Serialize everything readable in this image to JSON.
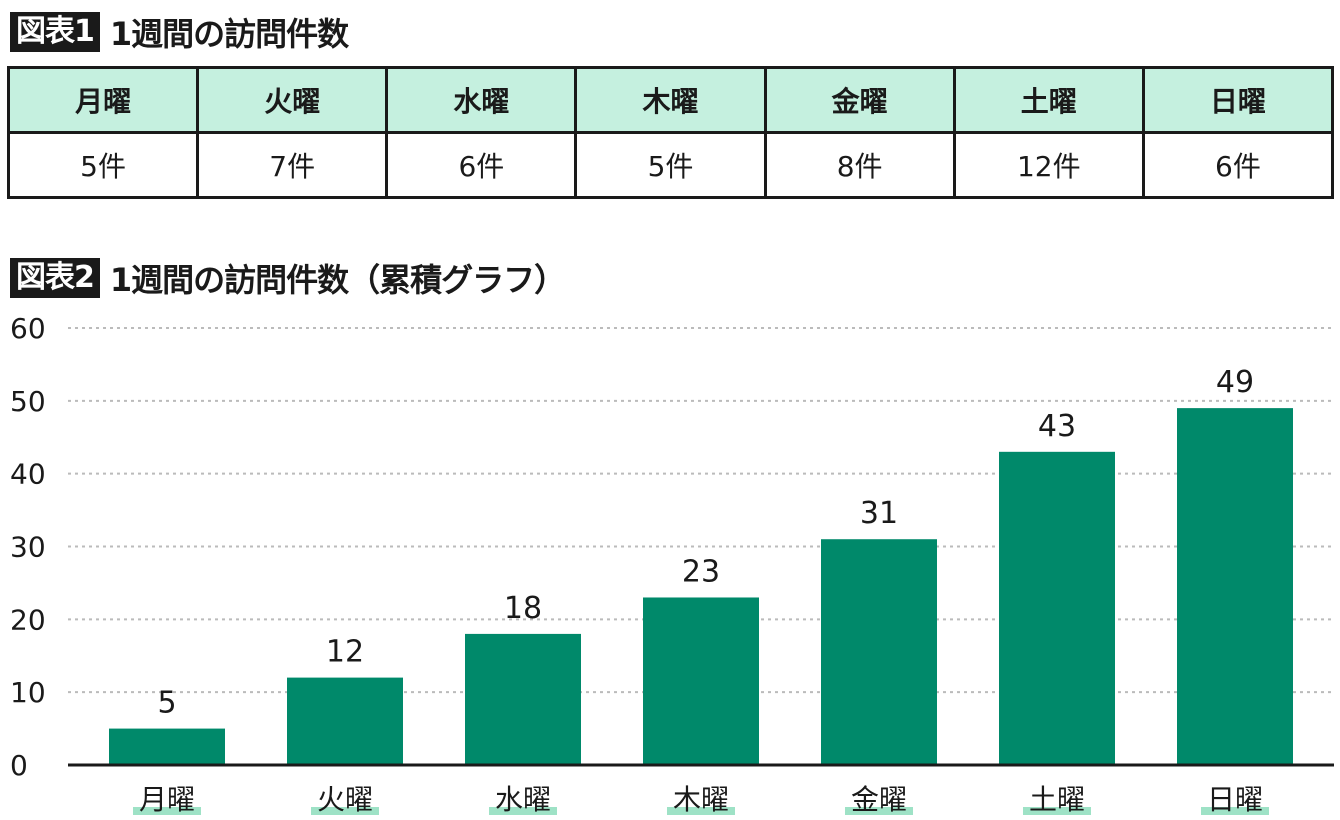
{
  "figure1": {
    "badge": "図表1",
    "title": "1週間の訪問件数",
    "headers": [
      "月曜",
      "火曜",
      "水曜",
      "木曜",
      "金曜",
      "土曜",
      "日曜"
    ],
    "cells": [
      "5件",
      "7件",
      "6件",
      "5件",
      "8件",
      "12件",
      "6件"
    ]
  },
  "figure2": {
    "badge": "図表2",
    "title": "1週間の訪問件数（累積グラフ）"
  },
  "colors": {
    "bar": "#00896a",
    "header_bg": "#c5f0df",
    "label_underline": "#9ee2c6",
    "grid": "#bbbbbb"
  },
  "chart_data": {
    "type": "bar",
    "categories": [
      "月曜",
      "火曜",
      "水曜",
      "木曜",
      "金曜",
      "土曜",
      "日曜"
    ],
    "values": [
      5,
      12,
      18,
      23,
      31,
      43,
      49
    ],
    "data_labels": [
      "5",
      "12",
      "18",
      "23",
      "31",
      "43",
      "49"
    ],
    "title": "1週間の訪問件数（累積グラフ）",
    "xlabel": "",
    "ylabel": "",
    "ylim": [
      0,
      60
    ],
    "yticks": [
      0,
      10,
      20,
      30,
      40,
      50,
      60
    ],
    "ytick_labels": [
      "0",
      "10",
      "20",
      "30",
      "40",
      "50",
      "60"
    ],
    "grid": "horizontal-dotted",
    "legend": "none"
  }
}
